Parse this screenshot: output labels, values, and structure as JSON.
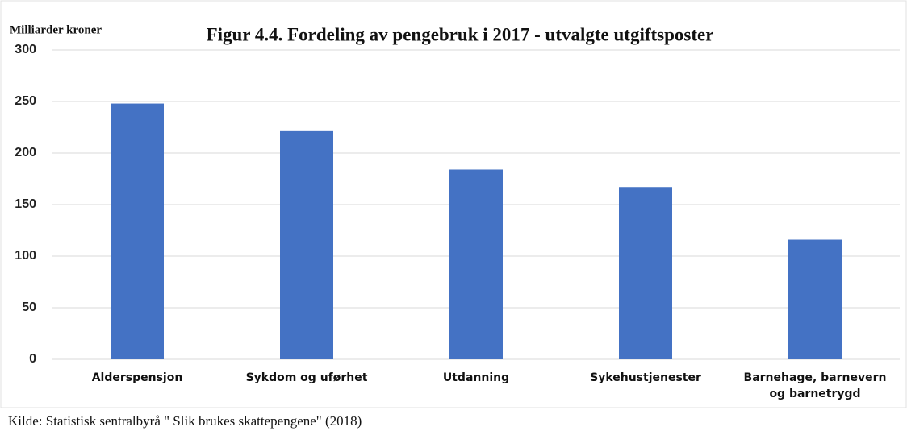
{
  "chart_data": {
    "type": "bar",
    "title": "Figur 4.4. Fordeling av pengebruk i 2017 - utvalgte utgiftsposter",
    "y_label": "Milliarder kroner",
    "source": "Kilde: Statistisk sentralbyrå \" Slik brukes skattepengene\"  (2018)",
    "categories": [
      "Alderspensjon",
      "Sykdom og uførhet",
      "Utdanning",
      "Sykehustjenester",
      "Barnehage, barnevern og barnetrygd"
    ],
    "values": [
      248,
      222,
      184,
      167,
      116
    ],
    "color": "#4472c4",
    "ylim": [
      0,
      300
    ],
    "yticks": [
      0,
      50,
      100,
      150,
      200,
      250,
      300
    ],
    "grid": true
  }
}
